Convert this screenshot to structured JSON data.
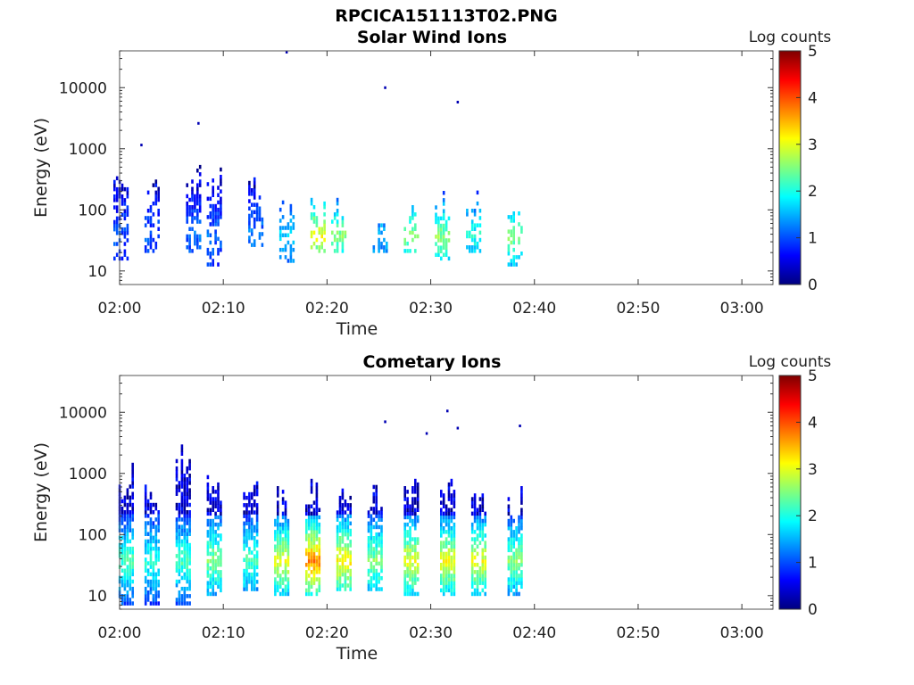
{
  "figure_title": "RPCICA151113T02.PNG",
  "colorbar_stops": [
    "#00007f",
    "#0000ff",
    "#007fff",
    "#00ffff",
    "#7fff7f",
    "#ffff00",
    "#ff7f00",
    "#ff0000",
    "#7f0000"
  ],
  "chart_data": [
    {
      "type": "heatmap",
      "title": "Solar Wind Ions",
      "xlabel": "Time",
      "ylabel": "Energy (eV)",
      "x_scale": "time",
      "y_scale": "log",
      "xlim": [
        "02:00",
        "03:03"
      ],
      "ylim": [
        6,
        40000
      ],
      "x_ticks": [
        "02:00",
        "02:10",
        "02:20",
        "02:30",
        "02:40",
        "02:50",
        "03:00"
      ],
      "y_ticks": [
        "10",
        "100",
        "1000",
        "10000"
      ],
      "colorbar": {
        "label": "Log counts",
        "range": [
          0,
          5
        ],
        "ticks": [
          "0",
          "1",
          "2",
          "3",
          "4",
          "5"
        ]
      },
      "grid": false,
      "bursts": [
        {
          "t": "02:00",
          "energy_range_eV": [
            15,
            700
          ],
          "peak_log_counts": 0.8
        },
        {
          "t": "02:03",
          "energy_range_eV": [
            20,
            400
          ],
          "peak_log_counts": 0.8
        },
        {
          "t": "02:07",
          "energy_range_eV": [
            20,
            600
          ],
          "peak_log_counts": 0.9
        },
        {
          "t": "02:09",
          "energy_range_eV": [
            12,
            500
          ],
          "peak_log_counts": 0.9
        },
        {
          "t": "02:13",
          "energy_range_eV": [
            25,
            400
          ],
          "peak_log_counts": 1.0
        },
        {
          "t": "02:16",
          "energy_range_eV": [
            12,
            200
          ],
          "peak_log_counts": 1.5
        },
        {
          "t": "02:19",
          "energy_range_eV": [
            20,
            150
          ],
          "peak_log_counts": 2.8
        },
        {
          "t": "02:21",
          "energy_range_eV": [
            20,
            150
          ],
          "peak_log_counts": 2.3
        },
        {
          "t": "02:25",
          "energy_range_eV": [
            20,
            100
          ],
          "peak_log_counts": 1.3
        },
        {
          "t": "02:28",
          "energy_range_eV": [
            20,
            150
          ],
          "peak_log_counts": 2.3
        },
        {
          "t": "02:31",
          "energy_range_eV": [
            15,
            200
          ],
          "peak_log_counts": 2.3
        },
        {
          "t": "02:34",
          "energy_range_eV": [
            20,
            200
          ],
          "peak_log_counts": 1.8
        },
        {
          "t": "02:38",
          "energy_range_eV": [
            12,
            150
          ],
          "peak_log_counts": 2.3
        }
      ],
      "isolated_counts": [
        {
          "t": "02:02",
          "energy_eV": 1150
        },
        {
          "t": "02:07.5",
          "energy_eV": 2600
        },
        {
          "t": "02:16",
          "energy_eV": 38000
        },
        {
          "t": "02:25.5",
          "energy_eV": 10000
        },
        {
          "t": "02:32.5",
          "energy_eV": 5800
        }
      ]
    },
    {
      "type": "heatmap",
      "title": "Cometary Ions",
      "xlabel": "Time",
      "ylabel": "Energy (eV)",
      "x_scale": "time",
      "y_scale": "log",
      "xlim": [
        "02:00",
        "03:03"
      ],
      "ylim": [
        6,
        40000
      ],
      "x_ticks": [
        "02:00",
        "02:10",
        "02:20",
        "02:30",
        "02:40",
        "02:50",
        "03:00"
      ],
      "y_ticks": [
        "10",
        "100",
        "1000",
        "10000"
      ],
      "colorbar": {
        "label": "Log counts",
        "range": [
          0,
          5
        ],
        "ticks": [
          "0",
          "1",
          "2",
          "3",
          "4",
          "5"
        ]
      },
      "grid": false,
      "bursts": [
        {
          "t": "02:00.5",
          "energy_range_eV": [
            7,
            1500
          ],
          "peak_log_counts": 2.0
        },
        {
          "t": "02:03",
          "energy_range_eV": [
            7,
            900
          ],
          "peak_log_counts": 1.8
        },
        {
          "t": "02:06",
          "energy_range_eV": [
            7,
            3000
          ],
          "peak_log_counts": 2.0
        },
        {
          "t": "02:09",
          "energy_range_eV": [
            10,
            1200
          ],
          "peak_log_counts": 2.3
        },
        {
          "t": "02:12.5",
          "energy_range_eV": [
            12,
            1200
          ],
          "peak_log_counts": 2.0
        },
        {
          "t": "02:15.5",
          "energy_range_eV": [
            10,
            600
          ],
          "peak_log_counts": 2.8
        },
        {
          "t": "02:18.5",
          "energy_range_eV": [
            10,
            900
          ],
          "peak_log_counts": 3.5
        },
        {
          "t": "02:21.5",
          "energy_range_eV": [
            12,
            700
          ],
          "peak_log_counts": 3.0
        },
        {
          "t": "02:24.5",
          "energy_range_eV": [
            12,
            700
          ],
          "peak_log_counts": 2.3
        },
        {
          "t": "02:28",
          "energy_range_eV": [
            10,
            1000
          ],
          "peak_log_counts": 2.8
        },
        {
          "t": "02:31.5",
          "energy_range_eV": [
            10,
            1200
          ],
          "peak_log_counts": 2.8
        },
        {
          "t": "02:34.5",
          "energy_range_eV": [
            10,
            700
          ],
          "peak_log_counts": 2.8
        },
        {
          "t": "02:38",
          "energy_range_eV": [
            10,
            600
          ],
          "peak_log_counts": 2.3
        }
      ],
      "isolated_counts": [
        {
          "t": "02:25.5",
          "energy_eV": 7000
        },
        {
          "t": "02:29.5",
          "energy_eV": 4500
        },
        {
          "t": "02:31.5",
          "energy_eV": 10500
        },
        {
          "t": "02:32.5",
          "energy_eV": 5500
        },
        {
          "t": "02:38.5",
          "energy_eV": 6000
        }
      ]
    }
  ]
}
